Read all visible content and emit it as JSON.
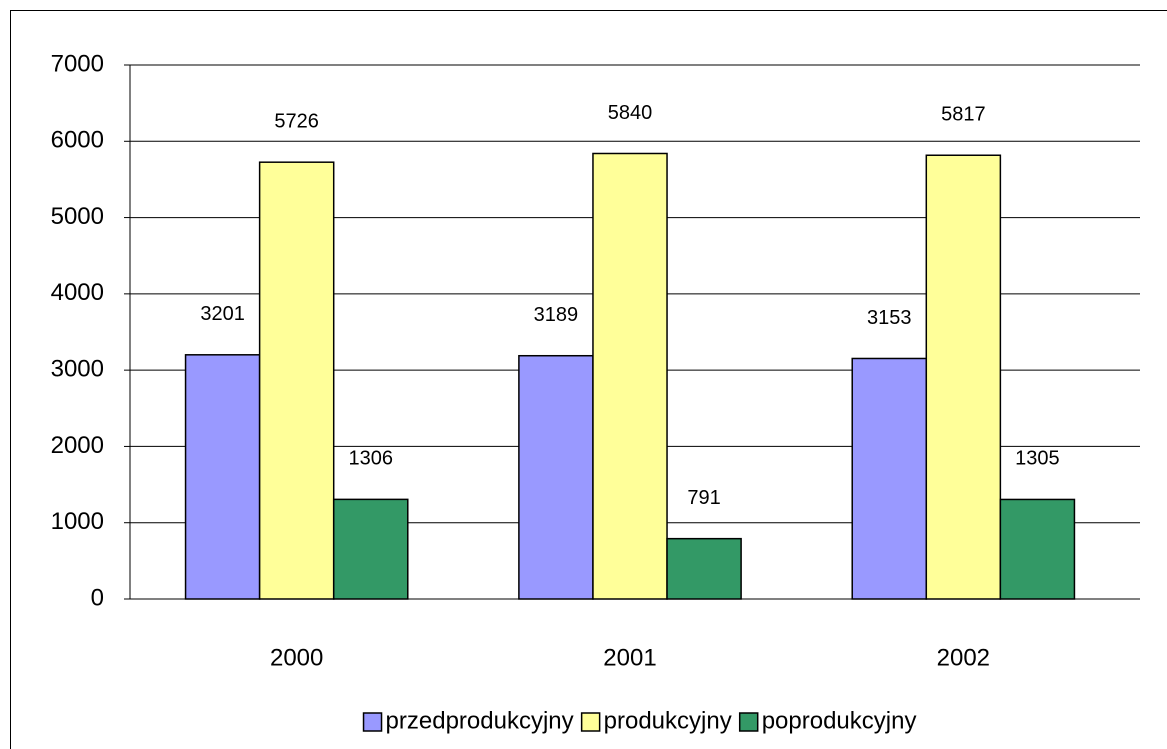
{
  "chart_data": {
    "type": "bar",
    "categories": [
      "2000",
      "2001",
      "2002"
    ],
    "series": [
      {
        "name": "przedprodukcyjny",
        "color": "#9999ff",
        "values": [
          3201,
          3189,
          3153
        ]
      },
      {
        "name": "produkcyjny",
        "color": "#ffff99",
        "values": [
          5726,
          5840,
          5817
        ]
      },
      {
        "name": "poprodukcyjny",
        "color": "#339966",
        "values": [
          1306,
          791,
          1305
        ]
      }
    ],
    "ylim": [
      0,
      7000
    ],
    "yticks": [
      0,
      1000,
      2000,
      3000,
      4000,
      5000,
      6000,
      7000
    ],
    "grid": true,
    "legend": "bottom"
  }
}
